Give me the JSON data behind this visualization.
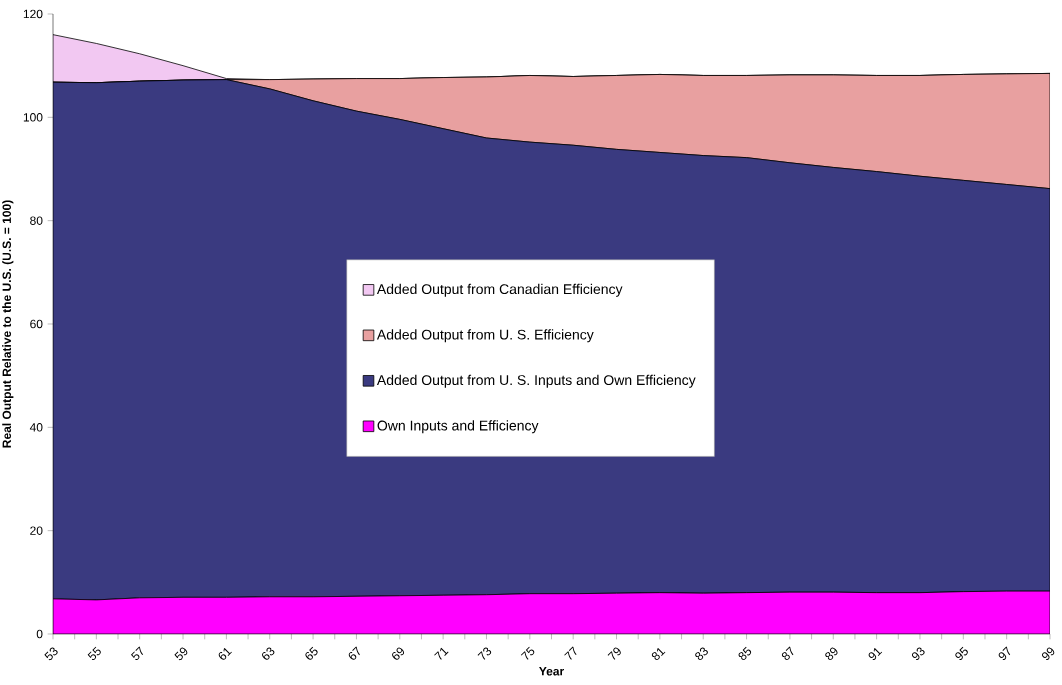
{
  "chart_data": {
    "type": "area",
    "stacked": true,
    "xlabel": "Year",
    "ylabel": "Real Output Relative to the U.S. (U.S. = 100)",
    "x": [
      53,
      55,
      57,
      59,
      61,
      63,
      65,
      67,
      69,
      71,
      73,
      75,
      77,
      79,
      81,
      83,
      85,
      87,
      89,
      91,
      93,
      95,
      97,
      99
    ],
    "xlim": [
      53,
      99
    ],
    "xticks": [
      53,
      55,
      57,
      59,
      61,
      63,
      65,
      67,
      69,
      71,
      73,
      75,
      77,
      79,
      81,
      83,
      85,
      87,
      89,
      91,
      93,
      95,
      97,
      99
    ],
    "ylim": [
      0,
      120
    ],
    "yticks": [
      0,
      20,
      40,
      60,
      80,
      100,
      120
    ],
    "legend": "center",
    "grid": false,
    "series": [
      {
        "name": "Own Inputs and Efficiency",
        "color": "#ff00ff",
        "values": [
          6.8,
          6.6,
          7.0,
          7.1,
          7.1,
          7.2,
          7.2,
          7.3,
          7.4,
          7.5,
          7.6,
          7.8,
          7.8,
          7.9,
          8.0,
          7.9,
          8.0,
          8.1,
          8.1,
          8.0,
          8.0,
          8.2,
          8.3,
          8.3
        ]
      },
      {
        "name": "Added Output from U. S. Inputs and Own Efficiency",
        "color": "#3a3a80",
        "values": [
          100.0,
          100.1,
          100.0,
          100.1,
          100.2,
          98.3,
          96.0,
          93.9,
          92.2,
          90.3,
          88.4,
          87.4,
          86.8,
          85.9,
          85.2,
          84.7,
          84.2,
          83.1,
          82.2,
          81.5,
          80.6,
          79.6,
          78.7,
          77.9
        ]
      },
      {
        "name": "Added Output from U. S. Efficiency",
        "color": "#e8a0a0",
        "values": [
          0,
          0,
          0,
          0,
          0,
          1.8,
          4.2,
          6.3,
          7.9,
          9.9,
          11.8,
          12.9,
          13.3,
          14.3,
          15.1,
          15.5,
          15.9,
          17.0,
          17.9,
          18.6,
          19.5,
          20.5,
          21.4,
          22.3
        ]
      },
      {
        "name": "Added Output from Canadian Efficiency",
        "color": "#f2c8f2",
        "values": [
          9.2,
          7.6,
          5.3,
          2.8,
          0.2,
          0,
          0,
          0,
          0,
          0,
          0,
          0,
          0,
          0,
          0,
          0,
          0,
          0,
          0,
          0,
          0,
          0,
          0,
          0
        ]
      }
    ]
  }
}
